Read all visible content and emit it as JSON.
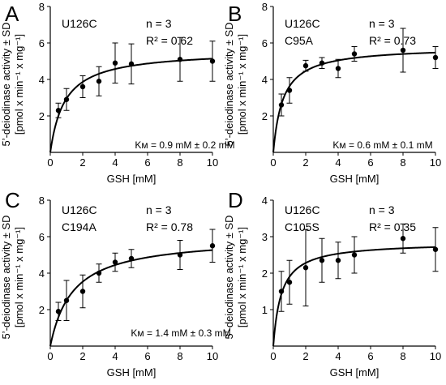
{
  "figure": {
    "shared_ylabel_line1": "5’-deiodinase activity ± SD",
    "shared_ylabel_line2": "[pmol x min⁻¹ x mg⁻¹]",
    "shared_xlabel": "GSH [mM]"
  },
  "chart_data": [
    {
      "panel": "A",
      "type": "scatter",
      "construct": [
        "U126C"
      ],
      "n_label": "n = 3",
      "r2_label": "R² = 0.62",
      "km_label": "Kм = 0.9 mM ± 0.2 mM",
      "xlabel": "GSH [mM]",
      "ylabel": "5’-deiodinase activity ± SD [pmol x min⁻¹ x mg⁻¹]",
      "xlim": [
        0,
        10
      ],
      "ylim": [
        0,
        8
      ],
      "xticks": [
        0,
        2,
        4,
        6,
        8,
        10
      ],
      "yticks": [
        2,
        4,
        6,
        8
      ],
      "x": [
        0.5,
        1,
        2,
        3,
        4,
        5,
        8,
        10
      ],
      "y": [
        2.3,
        2.9,
        3.6,
        3.9,
        4.9,
        4.85,
        5.1,
        5.0
      ],
      "sd": [
        0.4,
        0.6,
        0.6,
        0.8,
        1.1,
        1.1,
        1.2,
        1.1
      ],
      "fit": {
        "model": "michaelis-menten",
        "vmax": 5.6,
        "km": 0.9
      }
    },
    {
      "panel": "B",
      "type": "scatter",
      "construct": [
        "U126C",
        "C95A"
      ],
      "n_label": "n = 3",
      "r2_label": "R² = 0.73",
      "km_label": "Kм = 0.6 mM ± 0.1 mM",
      "xlabel": "GSH [mM]",
      "ylabel": "5’-deiodinase activity ± SD [pmol x min⁻¹ x mg⁻¹]",
      "xlim": [
        0,
        10
      ],
      "ylim": [
        0,
        8
      ],
      "xticks": [
        0,
        2,
        4,
        6,
        8,
        10
      ],
      "yticks": [
        2,
        4,
        6,
        8
      ],
      "x": [
        0.5,
        1,
        2,
        3,
        4,
        5,
        8,
        10
      ],
      "y": [
        2.6,
        3.4,
        4.75,
        4.9,
        4.6,
        5.4,
        5.6,
        5.2
      ],
      "sd": [
        0.6,
        0.7,
        0.3,
        0.3,
        0.5,
        0.4,
        1.2,
        0.6
      ],
      "fit": {
        "model": "michaelis-menten",
        "vmax": 5.8,
        "km": 0.6
      }
    },
    {
      "panel": "C",
      "type": "scatter",
      "construct": [
        "U126C",
        "C194A"
      ],
      "n_label": "n = 3",
      "r2_label": "R² = 0.78",
      "km_label": "Kм = 1.4 mM ± 0.3 mM",
      "xlabel": "GSH [mM]",
      "ylabel": "5’-deiodinase activity ± SD [pmol x min⁻¹ x mg⁻¹]",
      "xlim": [
        0,
        10
      ],
      "ylim": [
        0,
        8
      ],
      "xticks": [
        0,
        2,
        4,
        6,
        8,
        10
      ],
      "yticks": [
        2,
        4,
        6,
        8
      ],
      "x": [
        0.5,
        1,
        2,
        3,
        4,
        5,
        8,
        10
      ],
      "y": [
        1.9,
        2.5,
        3.0,
        4.0,
        4.6,
        4.8,
        5.0,
        5.5
      ],
      "sd": [
        0.5,
        1.1,
        0.9,
        0.5,
        0.5,
        0.5,
        0.8,
        0.9
      ],
      "fit": {
        "model": "michaelis-menten",
        "vmax": 6.0,
        "km": 1.4
      }
    },
    {
      "panel": "D",
      "type": "scatter",
      "construct": [
        "U126C",
        "C105S"
      ],
      "n_label": "n = 3",
      "r2_label": "R² = 0.35",
      "km_label": "",
      "xlabel": "GSH [mM]",
      "ylabel": "5’-deiodinase activity ± SD [pmol x min⁻¹ x mg⁻¹]",
      "xlim": [
        0,
        10
      ],
      "ylim": [
        0,
        4
      ],
      "xticks": [
        0,
        2,
        4,
        6,
        8,
        10
      ],
      "yticks": [
        1,
        2,
        3,
        4
      ],
      "x": [
        0.5,
        1,
        2,
        3,
        4,
        5,
        8,
        10
      ],
      "y": [
        1.5,
        1.75,
        2.15,
        2.35,
        2.35,
        2.5,
        2.95,
        2.65
      ],
      "sd": [
        0.55,
        0.6,
        1.05,
        0.6,
        0.5,
        0.5,
        0.4,
        0.6
      ],
      "fit": {
        "model": "michaelis-menten",
        "vmax": 2.85,
        "km": 0.5
      }
    }
  ]
}
